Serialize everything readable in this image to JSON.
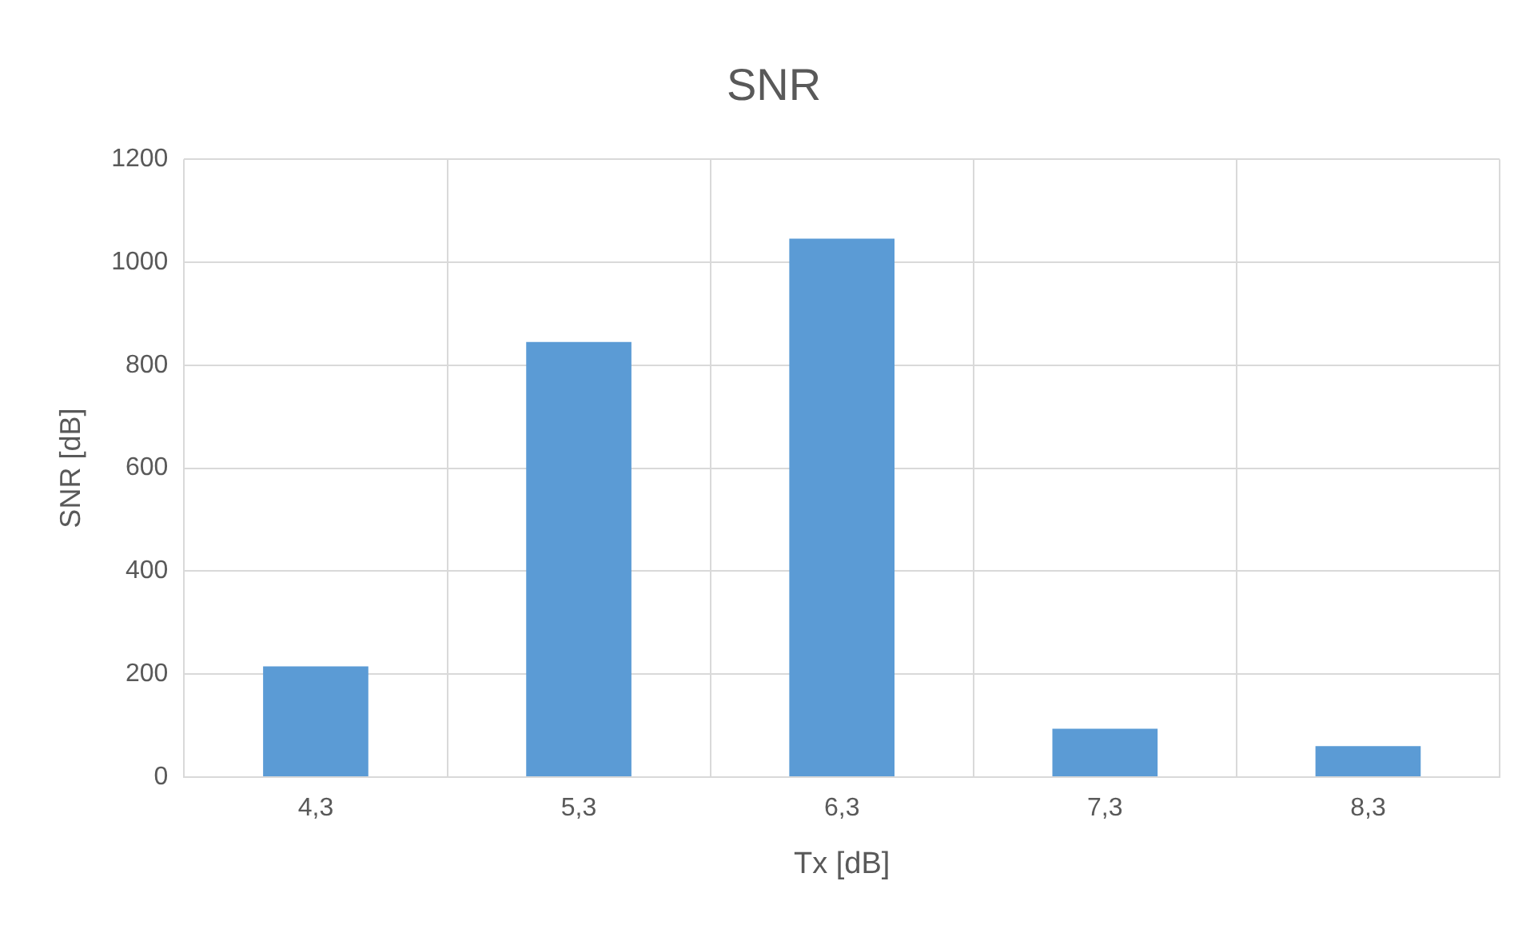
{
  "chart_data": {
    "type": "bar",
    "title": "SNR",
    "xlabel": "Tx [dB]",
    "ylabel": "SNR [dB]",
    "categories": [
      "4,3",
      "5,3",
      "6,3",
      "7,3",
      "8,3"
    ],
    "values": [
      215,
      845,
      1046,
      94,
      60
    ],
    "color": "#5b9bd5",
    "ylim": [
      0,
      1200
    ],
    "yticks": [
      0,
      200,
      400,
      600,
      800,
      1000,
      1200
    ],
    "grid": true,
    "legend": false
  }
}
